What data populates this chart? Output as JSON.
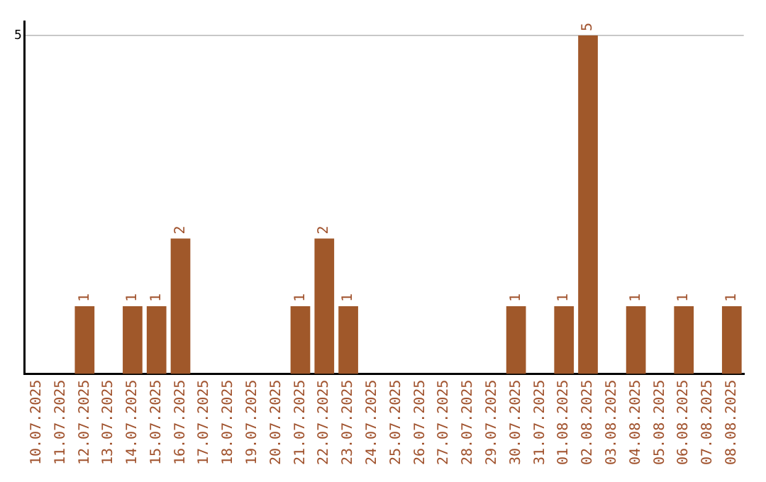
{
  "chart_data": {
    "type": "bar",
    "categories": [
      "10.07.2025",
      "11.07.2025",
      "12.07.2025",
      "13.07.2025",
      "14.07.2025",
      "15.07.2025",
      "16.07.2025",
      "17.07.2025",
      "18.07.2025",
      "19.07.2025",
      "20.07.2025",
      "21.07.2025",
      "22.07.2025",
      "23.07.2025",
      "24.07.2025",
      "25.07.2025",
      "26.07.2025",
      "27.07.2025",
      "28.07.2025",
      "29.07.2025",
      "30.07.2025",
      "31.07.2025",
      "01.08.2025",
      "02.08.2025",
      "03.08.2025",
      "04.08.2025",
      "05.08.2025",
      "06.08.2025",
      "07.08.2025",
      "08.08.2025"
    ],
    "values": [
      0,
      0,
      1,
      0,
      1,
      1,
      2,
      0,
      0,
      0,
      0,
      1,
      2,
      1,
      0,
      0,
      0,
      0,
      0,
      0,
      1,
      0,
      1,
      5,
      0,
      1,
      0,
      1,
      0,
      1
    ],
    "value_labels": [
      null,
      null,
      "1",
      null,
      "1",
      "1",
      "2",
      null,
      null,
      null,
      null,
      "1",
      "2",
      "1",
      null,
      null,
      null,
      null,
      null,
      null,
      "1",
      null,
      "1",
      "5",
      null,
      "1",
      null,
      "1",
      null,
      "1"
    ],
    "color": "#a0582a",
    "ylim": [
      0,
      5.2
    ],
    "yticks": [
      5
    ],
    "grid": "y",
    "legend": false
  }
}
